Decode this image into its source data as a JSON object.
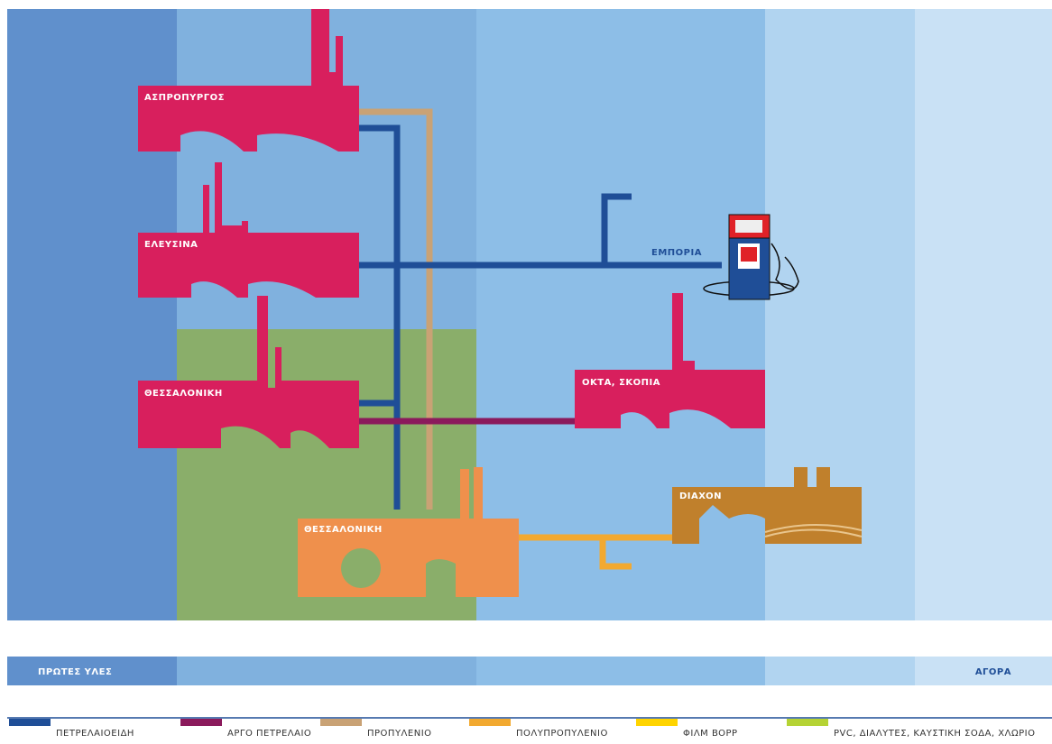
{
  "nodes": [
    {
      "label": "ΑΣΠΡΟΠΥΡΓΟΣ"
    },
    {
      "label": "ΕΛΕΥΣΙΝΑ"
    },
    {
      "label": "ΘΕΣΣΑΛΟΝΙΚΗ"
    },
    {
      "label": "ΕΜΠΟΡΙΑ"
    },
    {
      "label": "ΟΚΤΑ, ΣΚΟΠΙΑ"
    },
    {
      "label": "DIAXON"
    },
    {
      "label": "ΘΕΣΣΑΛΟΝΙΚΗ"
    }
  ],
  "stages": {
    "start": "ΠΡΩΤΕΣ ΥΛΕΣ",
    "end": "ΑΓΟΡΑ"
  },
  "legend": [
    {
      "label": "ΠΕΤΡΕΛΑΙΟΕΙΔΗ",
      "color": "#1f4e97"
    },
    {
      "label": "ΑΡΓΟ ΠΕΤΡΕΛΑΙΟ",
      "color": "#8b1a5c"
    },
    {
      "label": "ΠΡΟΠΥΛΕΝΙΟ",
      "color": "#c9a275"
    },
    {
      "label": "ΠΟΛΥΠΡΟΠΥΛΕΝΙΟ",
      "color": "#f2a930"
    },
    {
      "label": "ΦΙΛΜ BOPP",
      "color": "#ffd400"
    },
    {
      "label": "PVC, ΔΙΑΛΥΤΕΣ, ΚΑΥΣΤΙΚΗ ΣΟΔΑ, ΧΛΩΡΙΟ",
      "color": "#b5d334"
    }
  ]
}
